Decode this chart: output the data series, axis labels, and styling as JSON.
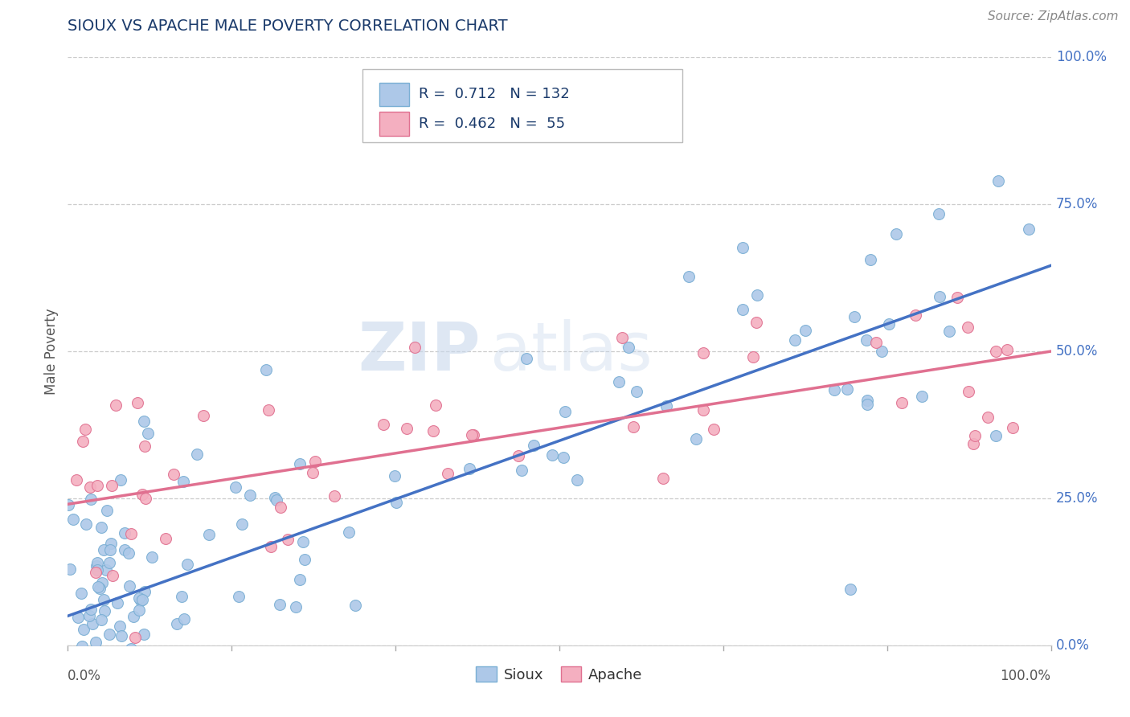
{
  "title": "SIOUX VS APACHE MALE POVERTY CORRELATION CHART",
  "source": "Source: ZipAtlas.com",
  "ylabel": "Male Poverty",
  "ytick_labels": [
    "0.0%",
    "25.0%",
    "50.0%",
    "75.0%",
    "100.0%"
  ],
  "ytick_vals": [
    0.0,
    0.25,
    0.5,
    0.75,
    1.0
  ],
  "xlim": [
    0.0,
    1.0
  ],
  "ylim": [
    0.0,
    1.0
  ],
  "sioux_color": "#adc8e8",
  "sioux_edge": "#7aafd4",
  "apache_color": "#f4afc0",
  "apache_edge": "#e07090",
  "line_sioux": "#4472c4",
  "line_apache": "#e07090",
  "R_sioux": 0.712,
  "N_sioux": 132,
  "R_apache": 0.462,
  "N_apache": 55,
  "background_color": "#ffffff",
  "grid_color": "#cccccc",
  "title_color": "#1a3a6b",
  "ytick_color": "#4472c4",
  "marker_size": 100,
  "sioux_line_y0": 0.04,
  "sioux_line_y1": 0.65,
  "apache_line_y0": 0.24,
  "apache_line_y1": 0.5
}
